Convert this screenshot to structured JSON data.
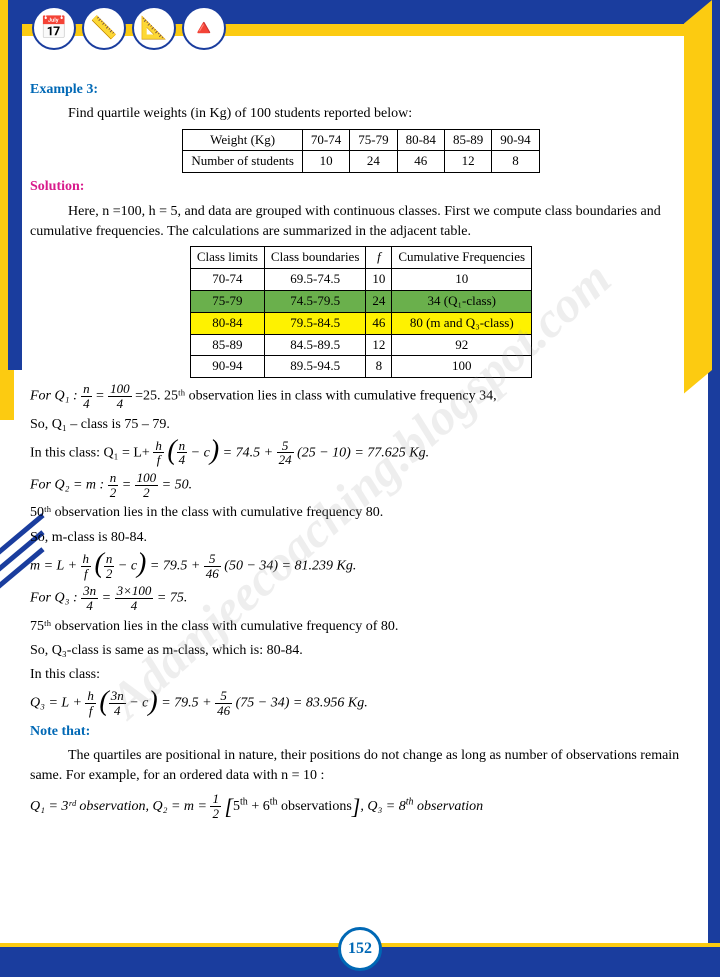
{
  "watermark": "Adamjeecoaching.blogspot.com",
  "header_icons": [
    "📅",
    "📏",
    "📐",
    "🔺"
  ],
  "example": {
    "label": "Example 3:",
    "task": "Find quartile weights (in Kg) of 100 students reported below:"
  },
  "table1": {
    "headers": [
      "Weight (Kg)",
      "70-74",
      "75-79",
      "80-84",
      "85-89",
      "90-94"
    ],
    "row": [
      "Number of students",
      "10",
      "24",
      "46",
      "12",
      "8"
    ]
  },
  "solution": {
    "label": "Solution:",
    "intro": "Here, n =100, h = 5, and data are grouped with continuous classes. First we compute class boundaries and cumulative frequencies. The calculations are summarized in the adjacent table."
  },
  "table2": {
    "headers": [
      "Class limits",
      "Class boundaries",
      "f",
      "Cumulative Frequencies"
    ],
    "rows": [
      {
        "cells": [
          "70-74",
          "69.5-74.5",
          "10",
          "10"
        ],
        "style": ""
      },
      {
        "cells": [
          "75-79",
          "74.5-79.5",
          "24",
          "34 (Q₁-class)"
        ],
        "style": "row-green"
      },
      {
        "cells": [
          "80-84",
          "79.5-84.5",
          "46",
          "80 (m and Q₃-class)"
        ],
        "style": "row-yellow"
      },
      {
        "cells": [
          "85-89",
          "84.5-89.5",
          "12",
          "92"
        ],
        "style": ""
      },
      {
        "cells": [
          "90-94",
          "89.5-94.5",
          "8",
          "100"
        ],
        "style": ""
      }
    ],
    "colors": {
      "green": "#6ab04c",
      "yellow": "#fef200"
    }
  },
  "lines": {
    "l1": "=25. 25ᵗʰ observation lies in class with cumulative frequency 34,",
    "l2": "So, Q₁ – class is 75 – 79.",
    "l3": "50ᵗʰ observation lies in the class with cumulative frequency 80.",
    "l4": "So, m-class is 80-84.",
    "l5": "75ᵗʰ observation lies  in the class with cumulative frequency of 80.",
    "l6": "So, Q₃-class is same as m-class, which is: 80-84.",
    "l7": "In this class:"
  },
  "q1_calc": {
    "pre": "In this class: Q₁ = L+",
    "h": "h",
    "f": "f",
    "nf": "n",
    "df": "4",
    "c": " − c",
    "eq": "= 74.5 +",
    "h2": "5",
    "f2": "24",
    "paren": "(25 − 10) = 77.625 Kg."
  },
  "q2_def": {
    "pre": "For Q₂ = m :",
    "n": "n",
    "d": "2",
    "eq": "=",
    "n2": "100",
    "d2": "2",
    "res": "= 50."
  },
  "q1_def": {
    "pre": "For  Q₁ :",
    "n": "n",
    "d": "4",
    "eq": "=",
    "n2": "100",
    "d2": "4"
  },
  "m_calc": {
    "pre": "m = L +",
    "h": "h",
    "f": "f",
    "nf": "n",
    "df": "2",
    "c": " − c",
    "eq": "= 79.5 +",
    "h2": "5",
    "f2": "46",
    "paren": "(50 − 34) = 81.239 Kg."
  },
  "q3_def": {
    "pre": "For Q₃ :",
    "n": "3n",
    "d": "4",
    "eq": "=",
    "n2": "3×100",
    "d2": "4",
    "res": "= 75."
  },
  "q3_calc": {
    "pre": "Q₃ = L +",
    "h": "h",
    "f": "f",
    "nf": "3n",
    "df": "4",
    "c": " − c",
    "eq": "= 79.5 +",
    "h2": "5",
    "f2": "46",
    "paren": "(75 − 34) = 83.956 Kg."
  },
  "note": {
    "label": "Note that:",
    "text": "The quartiles are positional in nature, their positions do not change as long as number of observations remain same. For example, for an ordered data with  n = 10 :",
    "formula": "Q₁ = 3ʳᵈ observation, Q₂ = m =",
    "half_n": "1",
    "half_d": "2",
    "obs": "[5ᵗʰ + 6ᵗʰ observations], Q₃ = 8ᵗʰ observation"
  },
  "page_number": "152",
  "style": {
    "blue": "#1a3d9e",
    "yellow": "#fccb11",
    "cyan": "#0068b5",
    "pink": "#d81b8c"
  }
}
